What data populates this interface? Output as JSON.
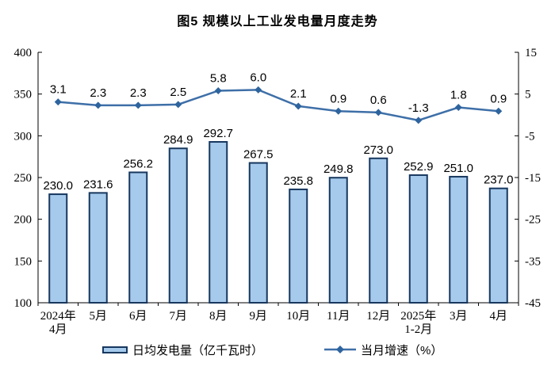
{
  "title": "图5 规模以上工业发电量月度走势",
  "chart_data": {
    "type": "bar",
    "subtype": "combo-bar-line-dual-axis",
    "categories": [
      "2024年\n4月",
      "5月",
      "6月",
      "7月",
      "8月",
      "9月",
      "10月",
      "11月",
      "12月",
      "2025年\n1-2月",
      "3月",
      "4月"
    ],
    "series": [
      {
        "name": "日均发电量（亿千瓦时）",
        "type": "bar",
        "axis": "left",
        "values": [
          230.0,
          231.6,
          256.2,
          284.9,
          292.7,
          267.5,
          235.8,
          249.8,
          273.0,
          252.9,
          251.0,
          237.0
        ],
        "value_labels": [
          "230.0",
          "231.6",
          "256.2",
          "284.9",
          "292.7",
          "267.5",
          "235.8",
          "249.8",
          "273.0",
          "252.9",
          "251.0",
          "237.0"
        ]
      },
      {
        "name": "当月增速（%）",
        "type": "line",
        "axis": "right",
        "values": [
          3.1,
          2.3,
          2.3,
          2.5,
          5.8,
          6.0,
          2.1,
          0.9,
          0.6,
          -1.3,
          1.8,
          0.9
        ],
        "value_labels": [
          "3.1",
          "2.3",
          "2.3",
          "2.5",
          "5.8",
          "6.0",
          "2.1",
          "0.9",
          "0.6",
          "-1.3",
          "1.8",
          "0.9"
        ]
      }
    ],
    "left_axis": {
      "min": 100,
      "max": 400,
      "ticks": [
        "100",
        "150",
        "200",
        "250",
        "300",
        "350",
        "400"
      ]
    },
    "right_axis": {
      "min": -45,
      "max": 15,
      "ticks": [
        "-45",
        "-35",
        "-25",
        "-15",
        "-5",
        "5",
        "15"
      ]
    },
    "gridlines": false,
    "legend_position": "bottom"
  },
  "colors": {
    "bar_fill": "#A6CAEC",
    "bar_border": "#17375E",
    "line": "#3E6FA8",
    "marker": "#2E649E",
    "axis": "#000000",
    "text": "#000000"
  }
}
